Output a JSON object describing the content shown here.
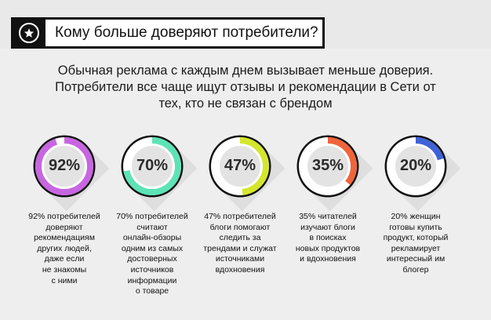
{
  "header": {
    "title": "Кому больше доверяют потребители?",
    "icon": "star-icon"
  },
  "intro": {
    "lines": [
      "Обычная реклама с каждым днем вызывает меньше доверия.",
      "Потребители все чаще ищут отзывы и рекомендации в Сети от",
      "тех, кто не связан с брендом"
    ]
  },
  "chart_data": {
    "type": "gauge",
    "items": [
      {
        "value": 92,
        "label": "92%",
        "color": "#c766e0",
        "caption": [
          "92% потребителей",
          "доверяют",
          "рекомендациям",
          "других людей,",
          "даже если",
          "не знакомы",
          "с ними"
        ]
      },
      {
        "value": 70,
        "label": "70%",
        "color": "#5de3b5",
        "caption": [
          "70% потребителей",
          "считают",
          "онлайн-обзоры",
          "одним из самых",
          "достоверных",
          "источников",
          "информации",
          "о товаре"
        ]
      },
      {
        "value": 47,
        "label": "47%",
        "color": "#d4e62c",
        "caption": [
          "47% потребителей",
          "блоги помогают",
          "следить за",
          "трендами и служат",
          "источниками",
          "вдохновения"
        ]
      },
      {
        "value": 35,
        "label": "35%",
        "color": "#f0643a",
        "caption": [
          "35% читателей",
          "изучают блоги",
          "в поисках",
          "новых продуктов",
          "и вдохновения"
        ]
      },
      {
        "value": 20,
        "label": "20%",
        "color": "#3f63d6",
        "caption": [
          "20% женщин",
          "готовы купить",
          "продукт, который",
          "рекламирует",
          "интересный им",
          "блогер"
        ]
      }
    ],
    "ring_background_color": "#ffffff",
    "inner_color": "#e3e3e3",
    "ring_outline_color": "#111111"
  }
}
